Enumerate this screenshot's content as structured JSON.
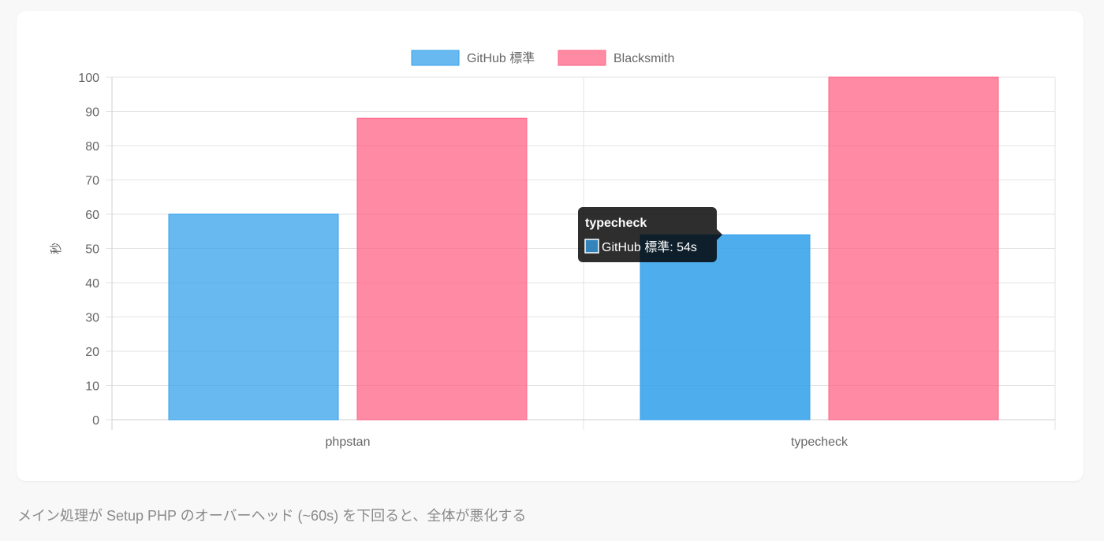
{
  "chart_data": {
    "type": "bar",
    "categories": [
      "phpstan",
      "typecheck"
    ],
    "series": [
      {
        "name": "GitHub 標準",
        "values": [
          60,
          54
        ],
        "color": "#36a2eb"
      },
      {
        "name": "Blacksmith",
        "values": [
          88,
          100
        ],
        "color": "#ff6384"
      }
    ],
    "ylabel": "秒",
    "ylim": [
      0,
      100
    ],
    "yticks": [
      0,
      10,
      20,
      30,
      40,
      50,
      60,
      70,
      80,
      90,
      100
    ],
    "grid": true,
    "legend_position": "top",
    "tooltip": {
      "title": "typecheck",
      "label": "GitHub 標準: 54s"
    }
  },
  "caption": "メイン処理が Setup PHP のオーバーヘッド (~60s) を下回ると、全体が悪化する"
}
